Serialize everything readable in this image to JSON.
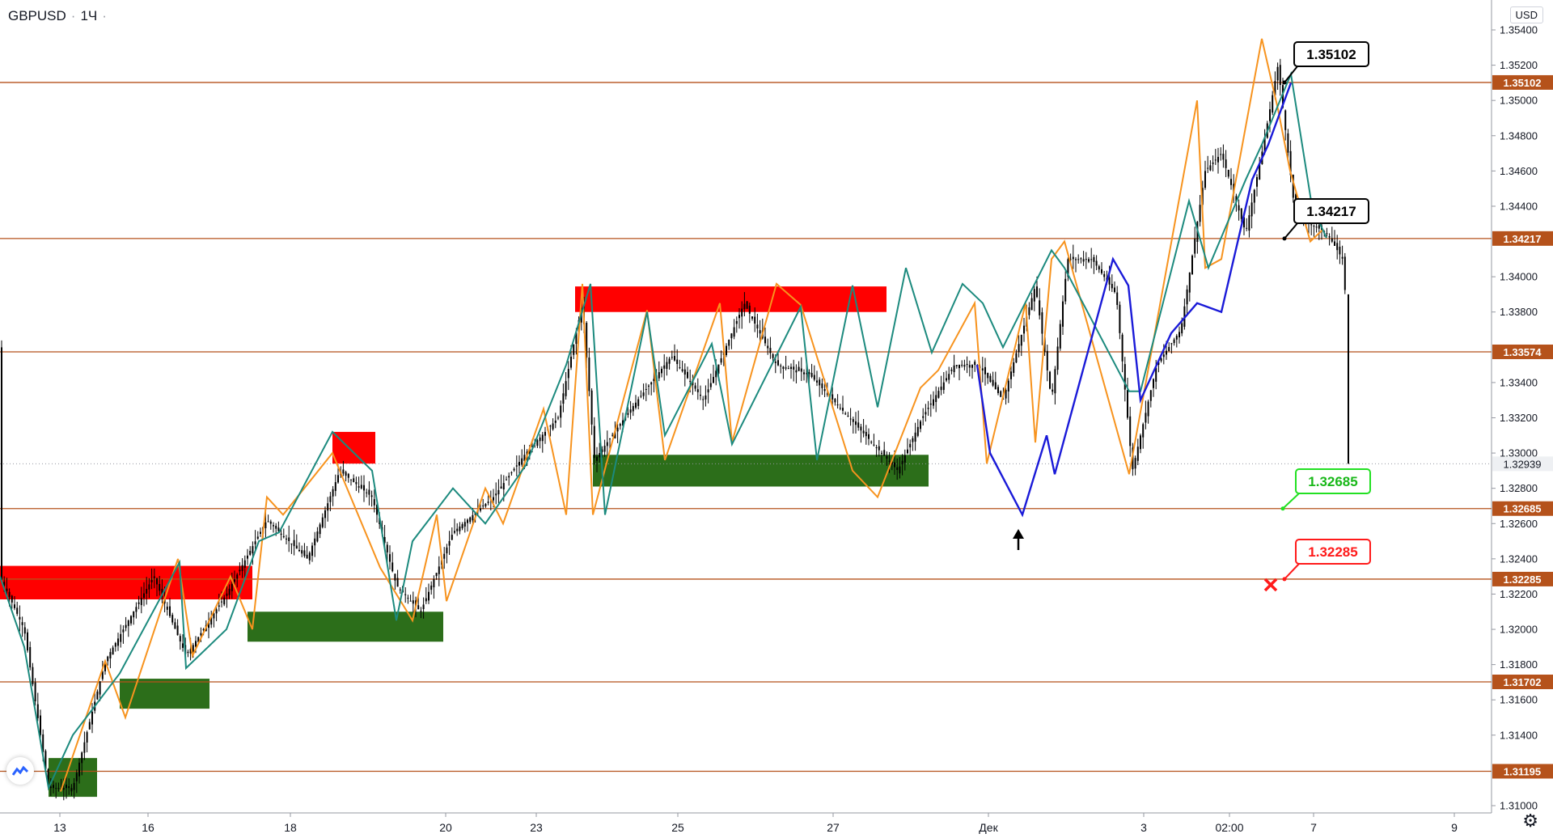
{
  "header": {
    "symbol": "GBPUSD",
    "interval": "1Ч",
    "currency": "USD"
  },
  "chart_data": {
    "type": "candlestick",
    "price_axis": {
      "range": [
        1.30949,
        1.35472
      ],
      "ticks": [
        "1.35400",
        "1.35200",
        "1.35000",
        "1.34800",
        "1.34600",
        "1.34400",
        "1.34000",
        "1.33800",
        "1.33400",
        "1.33200",
        "1.33000",
        "1.32800",
        "1.32600",
        "1.32400",
        "1.32200",
        "1.32000",
        "1.31800",
        "1.31600",
        "1.31400",
        "1.31000"
      ]
    },
    "time_axis": {
      "ticks": [
        "13",
        "16",
        "18",
        "20",
        "23",
        "25",
        "27",
        "Дек",
        "3",
        "02:00",
        "7",
        "9"
      ]
    },
    "horizontal_levels": [
      {
        "price": 1.35102,
        "label": "1.35102"
      },
      {
        "price": 1.34217,
        "label": "1.34217"
      },
      {
        "price": 1.33574,
        "label": "1.33574"
      },
      {
        "price": 1.32685,
        "label": "1.32685"
      },
      {
        "price": 1.32285,
        "label": "1.32285"
      },
      {
        "price": 1.31702,
        "label": "1.31702"
      },
      {
        "price": 1.31195,
        "label": "1.31195"
      }
    ],
    "last_price": {
      "price": 1.32939,
      "label": "1.32939"
    },
    "callouts": [
      {
        "text": "1.35102",
        "price": 1.35102,
        "style": "black"
      },
      {
        "text": "1.34217",
        "price": 1.34217,
        "style": "black"
      },
      {
        "text": "1.32685",
        "price": 1.32685,
        "style": "green"
      },
      {
        "text": "1.32285",
        "price": 1.32285,
        "style": "red"
      }
    ],
    "supply_zones": [
      {
        "from": 1.3236,
        "to": 1.3217
      },
      {
        "from": 1.3312,
        "to": 1.3294
      },
      {
        "from": 1.33945,
        "to": 1.338
      }
    ],
    "demand_zones": [
      {
        "from": 1.321,
        "to": 1.3193
      },
      {
        "from": 1.3172,
        "to": 1.3155
      },
      {
        "from": 1.3127,
        "to": 1.3105
      },
      {
        "from": 1.3299,
        "to": 1.3281
      }
    ],
    "colors": {
      "level_line": "#b5521b",
      "level_label_bg": "#b5521b",
      "orange_swings": "#f7931e",
      "teal_swings": "#1c8a7e",
      "blue_projection": "#1a1ad8",
      "supply": "#ff0000",
      "demand": "#2c6e1a",
      "candle": "#000000",
      "green_callout": "#22e022",
      "red_callout": "#ff1a1a"
    }
  }
}
